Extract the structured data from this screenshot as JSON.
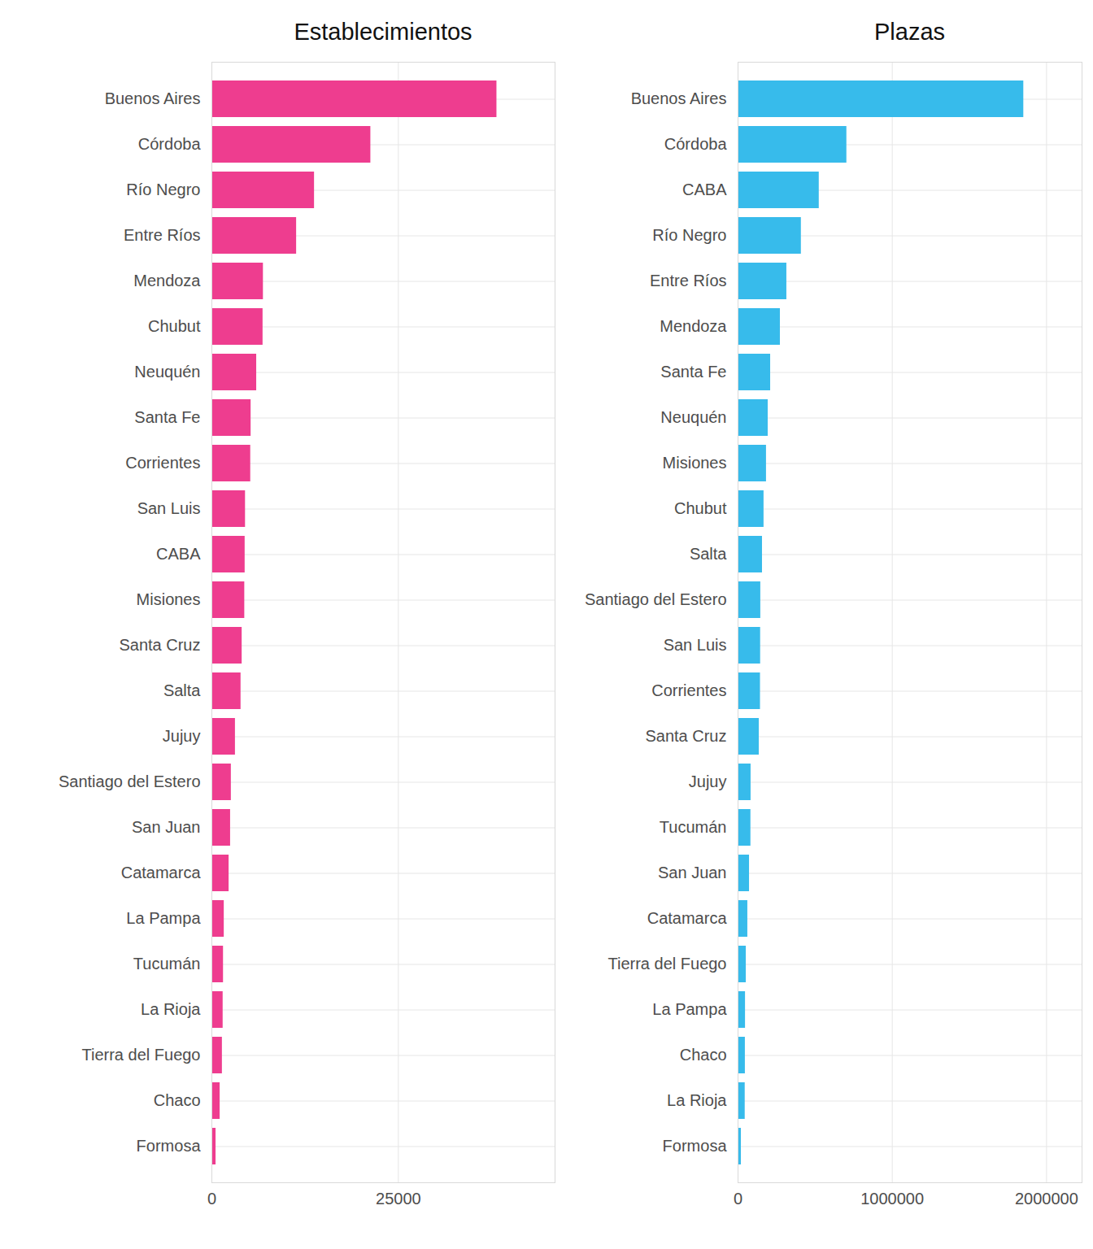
{
  "chart_data": [
    {
      "type": "bar",
      "title": "Establecimientos",
      "orientation": "horizontal",
      "grid": true,
      "color": "#ee3d8f",
      "categories": [
        "Buenos Aires",
        "Córdoba",
        "Río Negro",
        "Entre Ríos",
        "Mendoza",
        "Chubut",
        "Neuquén",
        "Santa Fe",
        "Corrientes",
        "San Luis",
        "CABA",
        "Misiones",
        "Santa Cruz",
        "Salta",
        "Jujuy",
        "Santiago del Estero",
        "San Juan",
        "Catamarca",
        "La Pampa",
        "Tucumán",
        "La Rioja",
        "Tierra del Fuego",
        "Chaco",
        "Formosa"
      ],
      "values": [
        38200,
        21300,
        13750,
        11350,
        6900,
        6850,
        6000,
        5250,
        5200,
        4500,
        4450,
        4400,
        4050,
        3900,
        3150,
        2600,
        2500,
        2300,
        1650,
        1550,
        1500,
        1400,
        1100,
        550
      ],
      "xlim": [
        0,
        46000
      ],
      "xticks": [
        0,
        25000
      ]
    },
    {
      "type": "bar",
      "title": "Plazas",
      "orientation": "horizontal",
      "grid": true,
      "color": "#37bbeb",
      "categories": [
        "Buenos Aires",
        "Córdoba",
        "CABA",
        "Río Negro",
        "Entre Ríos",
        "Mendoza",
        "Santa Fe",
        "Neuquén",
        "Misiones",
        "Chubut",
        "Salta",
        "Santiago del Estero",
        "San Luis",
        "Corrientes",
        "Santa Cruz",
        "Jujuy",
        "Tucumán",
        "San Juan",
        "Catamarca",
        "Tierra del Fuego",
        "La Pampa",
        "Chaco",
        "La Rioja",
        "Formosa"
      ],
      "values": [
        1852000,
        705000,
        526000,
        410000,
        316000,
        274000,
        211000,
        195000,
        184000,
        168000,
        158000,
        147000,
        146000,
        145000,
        137000,
        84000,
        83000,
        74000,
        63000,
        53000,
        48000,
        47000,
        46000,
        21000
      ],
      "xlim": [
        0,
        2230000
      ],
      "xticks": [
        0,
        1000000,
        2000000
      ]
    }
  ]
}
